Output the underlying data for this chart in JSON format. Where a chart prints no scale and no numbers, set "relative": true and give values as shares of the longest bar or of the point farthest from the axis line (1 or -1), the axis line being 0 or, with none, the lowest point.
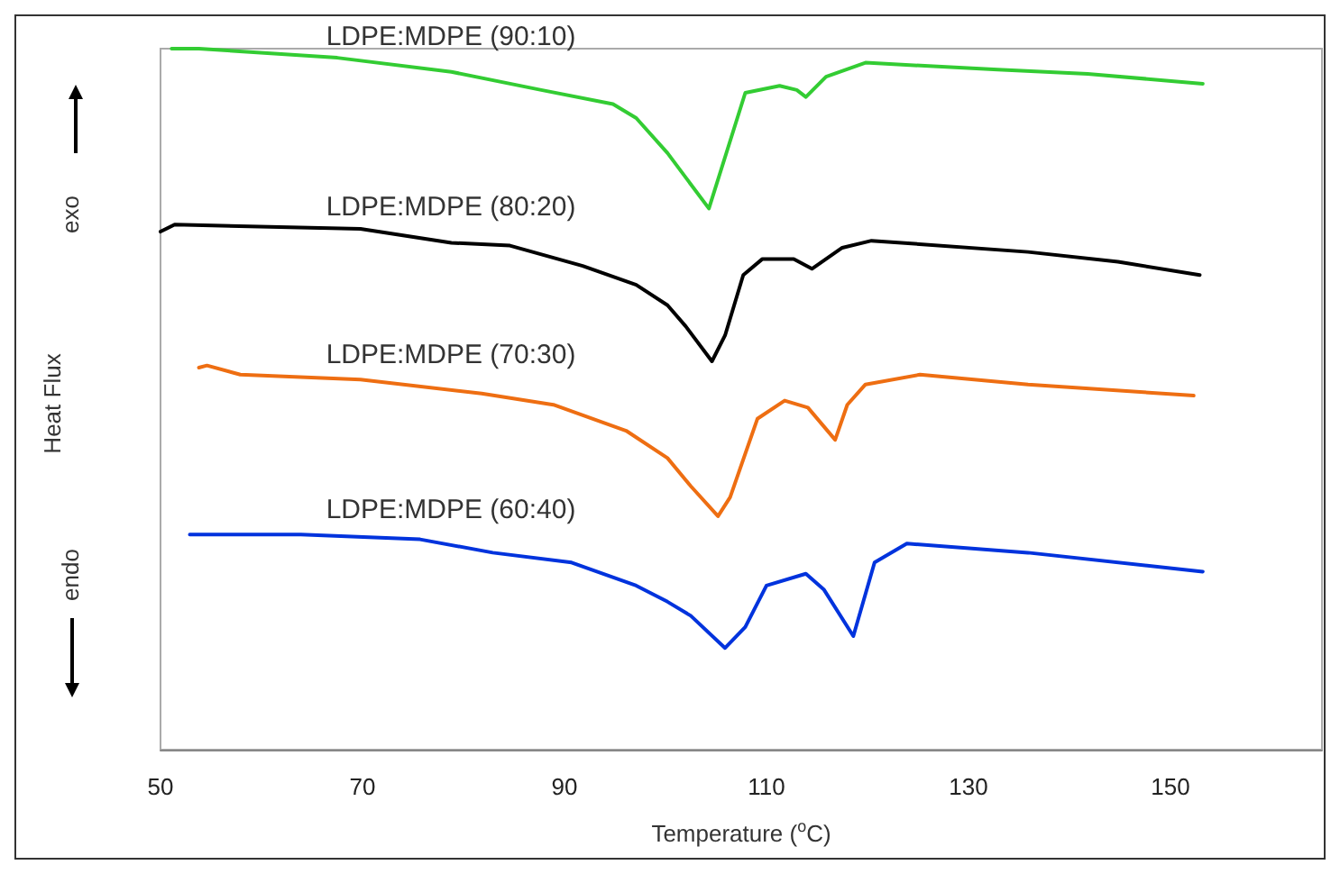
{
  "chart_data": {
    "type": "line",
    "relative": true,
    "xlabel": "Temperature ($^{o}$C)",
    "ylabel": "Heat Flux",
    "annotations": [
      "exo",
      "endo"
    ],
    "xlim": [
      50,
      165
    ],
    "xticks": [
      50,
      70,
      90,
      110,
      130,
      150
    ],
    "grid": false,
    "legend": false,
    "marker": "none",
    "line_style": "solid",
    "series": [
      {
        "name": "LDPE:MDPE (90:10)",
        "color": "#33cc33",
        "x": [
          51.1,
          53.8,
          67.5,
          78.8,
          87.7,
          94.8,
          97.1,
          100.2,
          104.3,
          107.9,
          111.3,
          113.0,
          113.9,
          115.9,
          119.8,
          132.9,
          141.8,
          153.2
        ],
        "values": [
          1,
          1,
          0.987,
          0.967,
          0.941,
          0.921,
          0.901,
          0.851,
          0.772,
          0.937,
          0.947,
          0.941,
          0.931,
          0.96,
          0.98,
          0.97,
          0.964,
          0.95
        ]
      },
      {
        "name": "LDPE:MDPE (80:20)",
        "color": "#000000",
        "x": [
          50,
          51.4,
          69.8,
          78.8,
          84.6,
          91.8,
          97.1,
          100.2,
          102,
          104.6,
          105.9,
          107.7,
          109.6,
          112.7,
          114.5,
          117.5,
          120.4,
          135.9,
          144.8,
          152.9
        ],
        "values": [
          0.739,
          0.749,
          0.743,
          0.723,
          0.719,
          0.69,
          0.663,
          0.634,
          0.604,
          0.554,
          0.591,
          0.677,
          0.7,
          0.7,
          0.686,
          0.716,
          0.726,
          0.71,
          0.696,
          0.677
        ]
      },
      {
        "name": "LDPE:MDPE (70:30)",
        "color": "#ee6e12",
        "x": [
          53.8,
          54.6,
          57.9,
          69.8,
          81.8,
          88.9,
          96.1,
          100.2,
          102.5,
          105.2,
          106.4,
          109.1,
          111.8,
          114.1,
          116.8,
          118,
          119.8,
          125.2,
          135.9,
          152.3
        ],
        "values": [
          0.545,
          0.548,
          0.535,
          0.528,
          0.508,
          0.492,
          0.455,
          0.416,
          0.376,
          0.333,
          0.36,
          0.472,
          0.498,
          0.488,
          0.442,
          0.492,
          0.521,
          0.535,
          0.521,
          0.505
        ]
      },
      {
        "name": "LDPE:MDPE (60:40)",
        "color": "#0033dd",
        "x": [
          52.9,
          63.9,
          75.7,
          82.9,
          90.7,
          97.1,
          100.2,
          102.5,
          105.9,
          107.9,
          110,
          113.9,
          115.7,
          118.6,
          120.7,
          123.9,
          135.9,
          153.2
        ],
        "values": [
          0.307,
          0.307,
          0.3,
          0.281,
          0.267,
          0.234,
          0.211,
          0.191,
          0.145,
          0.175,
          0.234,
          0.251,
          0.228,
          0.162,
          0.267,
          0.294,
          0.281,
          0.254
        ]
      }
    ]
  }
}
